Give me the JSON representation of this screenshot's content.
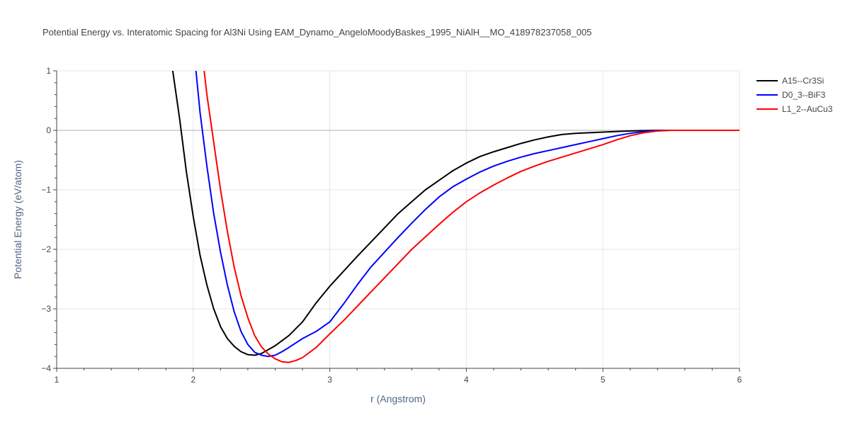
{
  "chart_data": {
    "type": "line",
    "title": "Potential Energy vs. Interatomic Spacing for Al3Ni Using EAM_Dynamo_AngeloMoodyBaskes_1995_NiAlH__MO_418978237058_005",
    "xlabel": "r (Angstrom)",
    "ylabel": "Potential Energy (eV/atom)",
    "xlim": [
      1,
      6
    ],
    "ylim": [
      -4,
      1
    ],
    "x_ticks": [
      1,
      2,
      3,
      4,
      5,
      6
    ],
    "y_ticks": [
      1,
      0,
      -1,
      -2,
      -3,
      -4
    ],
    "x_tick_labels": [
      "1",
      "2",
      "3",
      "4",
      "5",
      "6"
    ],
    "y_tick_labels": [
      "1",
      "0",
      "−1",
      "−2",
      "−3",
      "−4"
    ],
    "grid": true,
    "legend_position": "top-right",
    "series": [
      {
        "name": "A15--Cr3Si",
        "color": "#000000",
        "x": [
          1.85,
          1.9,
          1.95,
          2.0,
          2.05,
          2.1,
          2.15,
          2.2,
          2.25,
          2.3,
          2.35,
          2.4,
          2.45,
          2.5,
          2.6,
          2.7,
          2.8,
          2.9,
          3.0,
          3.1,
          3.2,
          3.3,
          3.4,
          3.5,
          3.6,
          3.7,
          3.8,
          3.9,
          4.0,
          4.1,
          4.2,
          4.3,
          4.4,
          4.5,
          4.6,
          4.7,
          4.8,
          4.9,
          5.0,
          5.1,
          5.2,
          5.3,
          5.4,
          5.5,
          5.6,
          5.8,
          6.0
        ],
        "y": [
          1.0,
          0.2,
          -0.7,
          -1.45,
          -2.1,
          -2.6,
          -3.0,
          -3.3,
          -3.5,
          -3.63,
          -3.72,
          -3.77,
          -3.78,
          -3.75,
          -3.62,
          -3.45,
          -3.22,
          -2.9,
          -2.62,
          -2.37,
          -2.12,
          -1.88,
          -1.64,
          -1.4,
          -1.2,
          -1.0,
          -0.84,
          -0.68,
          -0.55,
          -0.44,
          -0.36,
          -0.29,
          -0.22,
          -0.16,
          -0.11,
          -0.07,
          -0.05,
          -0.04,
          -0.03,
          -0.02,
          -0.01,
          -0.005,
          0.0,
          0.0,
          0.0,
          0.0,
          0.0
        ]
      },
      {
        "name": "D0_3--BiF3",
        "color": "#0000ff",
        "x": [
          2.02,
          2.05,
          2.1,
          2.15,
          2.2,
          2.25,
          2.3,
          2.35,
          2.4,
          2.45,
          2.5,
          2.55,
          2.6,
          2.65,
          2.7,
          2.8,
          2.9,
          3.0,
          3.1,
          3.2,
          3.3,
          3.4,
          3.5,
          3.6,
          3.7,
          3.8,
          3.9,
          4.0,
          4.1,
          4.2,
          4.3,
          4.4,
          4.5,
          4.6,
          4.7,
          4.8,
          4.9,
          5.0,
          5.1,
          5.2,
          5.3,
          5.4,
          5.5,
          5.6,
          5.8,
          6.0
        ],
        "y": [
          1.0,
          0.3,
          -0.6,
          -1.4,
          -2.05,
          -2.6,
          -3.05,
          -3.38,
          -3.6,
          -3.73,
          -3.78,
          -3.8,
          -3.78,
          -3.72,
          -3.65,
          -3.5,
          -3.38,
          -3.22,
          -2.92,
          -2.6,
          -2.3,
          -2.05,
          -1.8,
          -1.56,
          -1.33,
          -1.12,
          -0.95,
          -0.82,
          -0.7,
          -0.6,
          -0.52,
          -0.45,
          -0.39,
          -0.34,
          -0.29,
          -0.24,
          -0.19,
          -0.14,
          -0.09,
          -0.05,
          -0.02,
          -0.005,
          0.0,
          0.0,
          0.0,
          0.0
        ]
      },
      {
        "name": "L1_2--AuCu3",
        "color": "#ff0000",
        "x": [
          2.08,
          2.1,
          2.15,
          2.2,
          2.25,
          2.3,
          2.35,
          2.4,
          2.45,
          2.5,
          2.55,
          2.6,
          2.65,
          2.7,
          2.75,
          2.8,
          2.9,
          3.0,
          3.1,
          3.2,
          3.3,
          3.4,
          3.5,
          3.6,
          3.7,
          3.8,
          3.9,
          4.0,
          4.1,
          4.2,
          4.3,
          4.4,
          4.5,
          4.6,
          4.7,
          4.8,
          4.9,
          5.0,
          5.1,
          5.2,
          5.3,
          5.4,
          5.5,
          5.6,
          5.8,
          6.0
        ],
        "y": [
          1.0,
          0.6,
          -0.2,
          -1.0,
          -1.7,
          -2.3,
          -2.78,
          -3.15,
          -3.45,
          -3.64,
          -3.76,
          -3.84,
          -3.89,
          -3.9,
          -3.87,
          -3.82,
          -3.65,
          -3.42,
          -3.2,
          -2.96,
          -2.72,
          -2.48,
          -2.24,
          -2.0,
          -1.79,
          -1.58,
          -1.38,
          -1.2,
          -1.05,
          -0.92,
          -0.8,
          -0.69,
          -0.6,
          -0.52,
          -0.45,
          -0.38,
          -0.31,
          -0.24,
          -0.16,
          -0.09,
          -0.04,
          -0.01,
          0.0,
          0.0,
          0.0,
          0.0
        ]
      }
    ]
  }
}
